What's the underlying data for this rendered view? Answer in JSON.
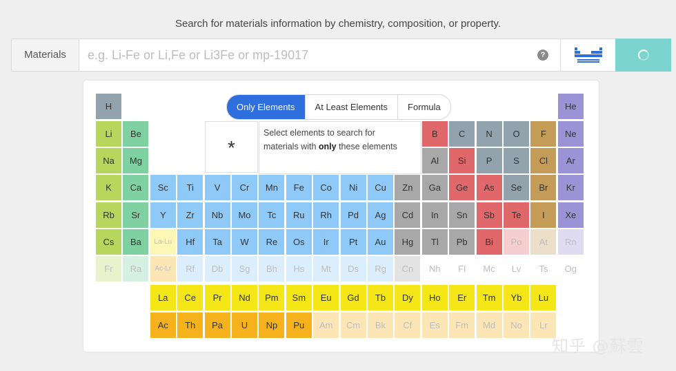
{
  "caption": "Search for materials information by chemistry, composition, or property.",
  "search": {
    "label": "Materials",
    "value": "",
    "placeholder": "e.g. Li-Fe or Li,Fe or Li3Fe or mp-19017",
    "help_icon": "question-circle-icon",
    "toggle_icon": "periodic-table-icon",
    "button_icon": "loading-spinner-icon"
  },
  "modes": {
    "items": [
      "Only Elements",
      "At Least Elements",
      "Formula"
    ],
    "selected": "Only Elements"
  },
  "wildcard": {
    "symbol": "*"
  },
  "help": {
    "line1": "Select elements to search for",
    "line2_before": "materials with ",
    "line2_bold": "only",
    "line2_after": " these elements"
  },
  "watermark": "知乎 @蘇雲",
  "colors": {
    "alkali": "#b7d65c",
    "alkaline": "#7fd1a2",
    "transition": "#8ec9f8",
    "post_transition": "#a8a8a8",
    "metalloid": "#e0676a",
    "nonmetal": "#93a3ad",
    "halogen": "#c49c57",
    "noble_gas": "#9b93d6",
    "lanthanide": "#f5e618",
    "actinide": "#f6b21c",
    "primary_blue": "#2f6fdd",
    "search_button": "#7bd4ce"
  },
  "elements": [
    {
      "s": "H",
      "r": 1,
      "c": 1,
      "k": "nonmetal"
    },
    {
      "s": "He",
      "r": 1,
      "c": 18,
      "k": "noble_gas"
    },
    {
      "s": "Li",
      "r": 2,
      "c": 1,
      "k": "alkali"
    },
    {
      "s": "Be",
      "r": 2,
      "c": 2,
      "k": "alkaline"
    },
    {
      "s": "B",
      "r": 2,
      "c": 13,
      "k": "metalloid"
    },
    {
      "s": "C",
      "r": 2,
      "c": 14,
      "k": "nonmetal"
    },
    {
      "s": "N",
      "r": 2,
      "c": 15,
      "k": "nonmetal"
    },
    {
      "s": "O",
      "r": 2,
      "c": 16,
      "k": "nonmetal"
    },
    {
      "s": "F",
      "r": 2,
      "c": 17,
      "k": "halogen"
    },
    {
      "s": "Ne",
      "r": 2,
      "c": 18,
      "k": "noble_gas"
    },
    {
      "s": "Na",
      "r": 3,
      "c": 1,
      "k": "alkali"
    },
    {
      "s": "Mg",
      "r": 3,
      "c": 2,
      "k": "alkaline"
    },
    {
      "s": "Al",
      "r": 3,
      "c": 13,
      "k": "post_transition"
    },
    {
      "s": "Si",
      "r": 3,
      "c": 14,
      "k": "metalloid"
    },
    {
      "s": "P",
      "r": 3,
      "c": 15,
      "k": "nonmetal"
    },
    {
      "s": "S",
      "r": 3,
      "c": 16,
      "k": "nonmetal"
    },
    {
      "s": "Cl",
      "r": 3,
      "c": 17,
      "k": "halogen"
    },
    {
      "s": "Ar",
      "r": 3,
      "c": 18,
      "k": "noble_gas"
    },
    {
      "s": "K",
      "r": 4,
      "c": 1,
      "k": "alkali"
    },
    {
      "s": "Ca",
      "r": 4,
      "c": 2,
      "k": "alkaline"
    },
    {
      "s": "Sc",
      "r": 4,
      "c": 3,
      "k": "transition"
    },
    {
      "s": "Ti",
      "r": 4,
      "c": 4,
      "k": "transition"
    },
    {
      "s": "V",
      "r": 4,
      "c": 5,
      "k": "transition"
    },
    {
      "s": "Cr",
      "r": 4,
      "c": 6,
      "k": "transition"
    },
    {
      "s": "Mn",
      "r": 4,
      "c": 7,
      "k": "transition"
    },
    {
      "s": "Fe",
      "r": 4,
      "c": 8,
      "k": "transition"
    },
    {
      "s": "Co",
      "r": 4,
      "c": 9,
      "k": "transition"
    },
    {
      "s": "Ni",
      "r": 4,
      "c": 10,
      "k": "transition"
    },
    {
      "s": "Cu",
      "r": 4,
      "c": 11,
      "k": "transition"
    },
    {
      "s": "Zn",
      "r": 4,
      "c": 12,
      "k": "post_transition"
    },
    {
      "s": "Ga",
      "r": 4,
      "c": 13,
      "k": "post_transition"
    },
    {
      "s": "Ge",
      "r": 4,
      "c": 14,
      "k": "metalloid"
    },
    {
      "s": "As",
      "r": 4,
      "c": 15,
      "k": "metalloid"
    },
    {
      "s": "Se",
      "r": 4,
      "c": 16,
      "k": "nonmetal"
    },
    {
      "s": "Br",
      "r": 4,
      "c": 17,
      "k": "halogen"
    },
    {
      "s": "Kr",
      "r": 4,
      "c": 18,
      "k": "noble_gas"
    },
    {
      "s": "Rb",
      "r": 5,
      "c": 1,
      "k": "alkali"
    },
    {
      "s": "Sr",
      "r": 5,
      "c": 2,
      "k": "alkaline"
    },
    {
      "s": "Y",
      "r": 5,
      "c": 3,
      "k": "transition"
    },
    {
      "s": "Zr",
      "r": 5,
      "c": 4,
      "k": "transition"
    },
    {
      "s": "Nb",
      "r": 5,
      "c": 5,
      "k": "transition"
    },
    {
      "s": "Mo",
      "r": 5,
      "c": 6,
      "k": "transition"
    },
    {
      "s": "Tc",
      "r": 5,
      "c": 7,
      "k": "transition"
    },
    {
      "s": "Ru",
      "r": 5,
      "c": 8,
      "k": "transition"
    },
    {
      "s": "Rh",
      "r": 5,
      "c": 9,
      "k": "transition"
    },
    {
      "s": "Pd",
      "r": 5,
      "c": 10,
      "k": "transition"
    },
    {
      "s": "Ag",
      "r": 5,
      "c": 11,
      "k": "transition"
    },
    {
      "s": "Cd",
      "r": 5,
      "c": 12,
      "k": "post_transition"
    },
    {
      "s": "In",
      "r": 5,
      "c": 13,
      "k": "post_transition"
    },
    {
      "s": "Sn",
      "r": 5,
      "c": 14,
      "k": "post_transition"
    },
    {
      "s": "Sb",
      "r": 5,
      "c": 15,
      "k": "metalloid"
    },
    {
      "s": "Te",
      "r": 5,
      "c": 16,
      "k": "metalloid"
    },
    {
      "s": "I",
      "r": 5,
      "c": 17,
      "k": "halogen"
    },
    {
      "s": "Xe",
      "r": 5,
      "c": 18,
      "k": "noble_gas"
    },
    {
      "s": "Cs",
      "r": 6,
      "c": 1,
      "k": "alkali"
    },
    {
      "s": "Ba",
      "r": 6,
      "c": 2,
      "k": "alkaline"
    },
    {
      "s": "La-Lu",
      "r": 6,
      "c": 3,
      "k": "lanthanide",
      "dim": true
    },
    {
      "s": "Hf",
      "r": 6,
      "c": 4,
      "k": "transition"
    },
    {
      "s": "Ta",
      "r": 6,
      "c": 5,
      "k": "transition"
    },
    {
      "s": "W",
      "r": 6,
      "c": 6,
      "k": "transition"
    },
    {
      "s": "Re",
      "r": 6,
      "c": 7,
      "k": "transition"
    },
    {
      "s": "Os",
      "r": 6,
      "c": 8,
      "k": "transition"
    },
    {
      "s": "Ir",
      "r": 6,
      "c": 9,
      "k": "transition"
    },
    {
      "s": "Pt",
      "r": 6,
      "c": 10,
      "k": "transition"
    },
    {
      "s": "Au",
      "r": 6,
      "c": 11,
      "k": "transition"
    },
    {
      "s": "Hg",
      "r": 6,
      "c": 12,
      "k": "post_transition"
    },
    {
      "s": "Tl",
      "r": 6,
      "c": 13,
      "k": "post_transition"
    },
    {
      "s": "Pb",
      "r": 6,
      "c": 14,
      "k": "post_transition"
    },
    {
      "s": "Bi",
      "r": 6,
      "c": 15,
      "k": "metalloid"
    },
    {
      "s": "Po",
      "r": 6,
      "c": 16,
      "k": "metalloid",
      "dim": true
    },
    {
      "s": "At",
      "r": 6,
      "c": 17,
      "k": "halogen",
      "dim": true
    },
    {
      "s": "Rn",
      "r": 6,
      "c": 18,
      "k": "noble_gas",
      "dim": true
    },
    {
      "s": "Fr",
      "r": 7,
      "c": 1,
      "k": "alkali",
      "dim": true
    },
    {
      "s": "Ra",
      "r": 7,
      "c": 2,
      "k": "alkaline",
      "dim": true
    },
    {
      "s": "Ac-Lr",
      "r": 7,
      "c": 3,
      "k": "actinide",
      "dim": true
    },
    {
      "s": "Rf",
      "r": 7,
      "c": 4,
      "k": "transition",
      "dim": true
    },
    {
      "s": "Db",
      "r": 7,
      "c": 5,
      "k": "transition",
      "dim": true
    },
    {
      "s": "Sg",
      "r": 7,
      "c": 6,
      "k": "transition",
      "dim": true
    },
    {
      "s": "Bh",
      "r": 7,
      "c": 7,
      "k": "transition",
      "dim": true
    },
    {
      "s": "Hs",
      "r": 7,
      "c": 8,
      "k": "transition",
      "dim": true
    },
    {
      "s": "Mt",
      "r": 7,
      "c": 9,
      "k": "transition",
      "dim": true
    },
    {
      "s": "Ds",
      "r": 7,
      "c": 10,
      "k": "transition",
      "dim": true
    },
    {
      "s": "Rg",
      "r": 7,
      "c": 11,
      "k": "transition",
      "dim": true
    },
    {
      "s": "Cn",
      "r": 7,
      "c": 12,
      "k": "post_transition",
      "dim": true
    },
    {
      "s": "Nh",
      "r": 7,
      "c": 13,
      "k": "none",
      "dim": true
    },
    {
      "s": "Fl",
      "r": 7,
      "c": 14,
      "k": "none",
      "dim": true
    },
    {
      "s": "Mc",
      "r": 7,
      "c": 15,
      "k": "none",
      "dim": true
    },
    {
      "s": "Lv",
      "r": 7,
      "c": 16,
      "k": "none",
      "dim": true
    },
    {
      "s": "Ts",
      "r": 7,
      "c": 17,
      "k": "none",
      "dim": true
    },
    {
      "s": "Og",
      "r": 7,
      "c": 18,
      "k": "none",
      "dim": true
    },
    {
      "s": "La",
      "r": 8,
      "c": 3,
      "k": "lanthanide"
    },
    {
      "s": "Ce",
      "r": 8,
      "c": 4,
      "k": "lanthanide"
    },
    {
      "s": "Pr",
      "r": 8,
      "c": 5,
      "k": "lanthanide"
    },
    {
      "s": "Nd",
      "r": 8,
      "c": 6,
      "k": "lanthanide"
    },
    {
      "s": "Pm",
      "r": 8,
      "c": 7,
      "k": "lanthanide"
    },
    {
      "s": "Sm",
      "r": 8,
      "c": 8,
      "k": "lanthanide"
    },
    {
      "s": "Eu",
      "r": 8,
      "c": 9,
      "k": "lanthanide"
    },
    {
      "s": "Gd",
      "r": 8,
      "c": 10,
      "k": "lanthanide"
    },
    {
      "s": "Tb",
      "r": 8,
      "c": 11,
      "k": "lanthanide"
    },
    {
      "s": "Dy",
      "r": 8,
      "c": 12,
      "k": "lanthanide"
    },
    {
      "s": "Ho",
      "r": 8,
      "c": 13,
      "k": "lanthanide"
    },
    {
      "s": "Er",
      "r": 8,
      "c": 14,
      "k": "lanthanide"
    },
    {
      "s": "Tm",
      "r": 8,
      "c": 15,
      "k": "lanthanide"
    },
    {
      "s": "Yb",
      "r": 8,
      "c": 16,
      "k": "lanthanide"
    },
    {
      "s": "Lu",
      "r": 8,
      "c": 17,
      "k": "lanthanide"
    },
    {
      "s": "Ac",
      "r": 9,
      "c": 3,
      "k": "actinide"
    },
    {
      "s": "Th",
      "r": 9,
      "c": 4,
      "k": "actinide"
    },
    {
      "s": "Pa",
      "r": 9,
      "c": 5,
      "k": "actinide"
    },
    {
      "s": "U",
      "r": 9,
      "c": 6,
      "k": "actinide"
    },
    {
      "s": "Np",
      "r": 9,
      "c": 7,
      "k": "actinide"
    },
    {
      "s": "Pu",
      "r": 9,
      "c": 8,
      "k": "actinide"
    },
    {
      "s": "Am",
      "r": 9,
      "c": 9,
      "k": "actinide",
      "dim": true
    },
    {
      "s": "Cm",
      "r": 9,
      "c": 10,
      "k": "actinide",
      "dim": true
    },
    {
      "s": "Bk",
      "r": 9,
      "c": 11,
      "k": "actinide",
      "dim": true
    },
    {
      "s": "Cf",
      "r": 9,
      "c": 12,
      "k": "actinide",
      "dim": true
    },
    {
      "s": "Es",
      "r": 9,
      "c": 13,
      "k": "actinide",
      "dim": true
    },
    {
      "s": "Fm",
      "r": 9,
      "c": 14,
      "k": "actinide",
      "dim": true
    },
    {
      "s": "Md",
      "r": 9,
      "c": 15,
      "k": "actinide",
      "dim": true
    },
    {
      "s": "No",
      "r": 9,
      "c": 16,
      "k": "actinide",
      "dim": true
    },
    {
      "s": "Lr",
      "r": 9,
      "c": 17,
      "k": "actinide",
      "dim": true
    }
  ]
}
